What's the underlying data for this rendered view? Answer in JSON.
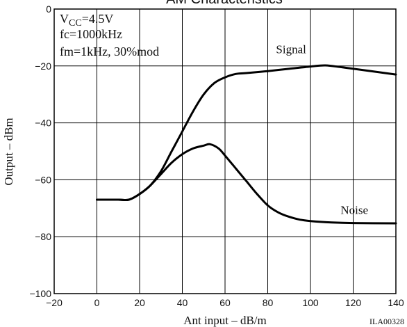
{
  "chart_data": {
    "type": "line",
    "title": "AM Characteristics",
    "xlabel": "Ant input  –  dB/m",
    "ylabel": "Output  –  dBm",
    "xlim": [
      -20,
      140
    ],
    "ylim": [
      -100,
      0
    ],
    "xticks": [
      -20,
      0,
      20,
      40,
      60,
      80,
      100,
      120,
      140
    ],
    "yticks": [
      0,
      -20,
      -40,
      -60,
      -80,
      -100
    ],
    "grid": true,
    "conditions": [
      "VCC=4.5V",
      "fc=1000kHz",
      "fm=1kHz, 30%mod"
    ],
    "figure_code": "ILA00328",
    "series": [
      {
        "name": "Signal",
        "x": [
          0,
          10,
          15,
          20,
          25,
          30,
          35,
          40,
          45,
          50,
          55,
          60,
          65,
          70,
          80,
          90,
          100,
          107,
          115,
          125,
          140
        ],
        "y": [
          -67,
          -67,
          -67,
          -65,
          -62,
          -57,
          -50,
          -43,
          -36,
          -30,
          -26,
          -24,
          -22.8,
          -22.5,
          -21.8,
          -21,
          -20.2,
          -19.8,
          -20.5,
          -21.5,
          -23
        ]
      },
      {
        "name": "Noise",
        "x": [
          0,
          10,
          15,
          20,
          25,
          30,
          35,
          40,
          45,
          50,
          53,
          57,
          60,
          65,
          70,
          75,
          80,
          85,
          90,
          95,
          100,
          110,
          120,
          140
        ],
        "y": [
          -67,
          -67,
          -67,
          -65,
          -62,
          -58,
          -54,
          -51,
          -49,
          -48,
          -47.5,
          -49,
          -51.5,
          -56,
          -60.5,
          -65,
          -69,
          -71.5,
          -73,
          -74,
          -74.5,
          -75,
          -75.2,
          -75.3
        ]
      }
    ]
  }
}
